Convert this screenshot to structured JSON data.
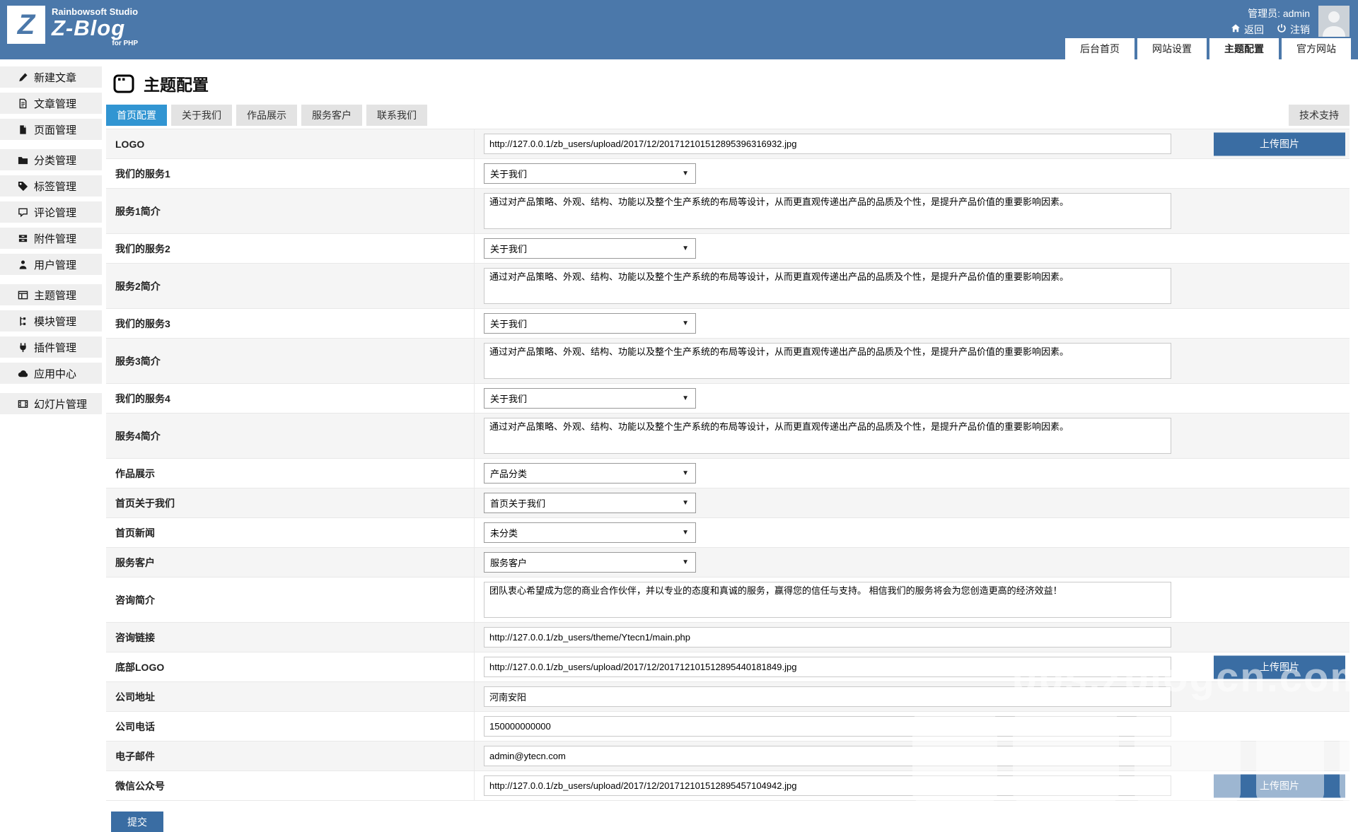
{
  "colors": {
    "header": "#4b78aa",
    "accent": "#3a6da3",
    "tabactive": "#3195d2"
  },
  "brand": {
    "logo_letter": "Z",
    "studio": "Rainbowsoft Studio",
    "product": "Z-Blog",
    "sub": "for PHP"
  },
  "header": {
    "admin_label": "管理员:",
    "admin_name": "admin",
    "back": "返回",
    "logout": "注销",
    "nav": [
      {
        "name": "admin-home",
        "label": "后台首页",
        "active": false
      },
      {
        "name": "site-settings",
        "label": "网站设置",
        "active": false
      },
      {
        "name": "theme-config",
        "label": "主题配置",
        "active": true
      },
      {
        "name": "official-site",
        "label": "官方网站",
        "active": false
      }
    ]
  },
  "sidebar": {
    "groups": [
      [
        {
          "name": "new-article",
          "icon": "edit",
          "label": "新建文章"
        },
        {
          "name": "article-manage",
          "icon": "article",
          "label": "文章管理"
        },
        {
          "name": "page-manage",
          "icon": "page",
          "label": "页面管理"
        }
      ],
      [
        {
          "name": "category-manage",
          "icon": "category",
          "label": "分类管理"
        },
        {
          "name": "tag-manage",
          "icon": "tag",
          "label": "标签管理"
        },
        {
          "name": "comment-manage",
          "icon": "comment",
          "label": "评论管理"
        },
        {
          "name": "attachment-manage",
          "icon": "attachment",
          "label": "附件管理"
        },
        {
          "name": "user-manage",
          "icon": "user",
          "label": "用户管理"
        }
      ],
      [
        {
          "name": "theme-manage",
          "icon": "theme",
          "label": "主题管理"
        },
        {
          "name": "module-manage",
          "icon": "module",
          "label": "模块管理"
        },
        {
          "name": "plugin-manage",
          "icon": "plugin",
          "label": "插件管理"
        },
        {
          "name": "app-center",
          "icon": "app",
          "label": "应用中心"
        }
      ],
      [
        {
          "name": "slideshow-manage",
          "icon": "slideshow",
          "label": "幻灯片管理"
        }
      ]
    ]
  },
  "main": {
    "title": "主题配置",
    "tabs": [
      {
        "name": "home-config",
        "label": "首页配置",
        "active": true
      },
      {
        "name": "about-us",
        "label": "关于我们",
        "active": false
      },
      {
        "name": "portfolio",
        "label": "作品展示",
        "active": false
      },
      {
        "name": "service-customers",
        "label": "服务客户",
        "active": false
      },
      {
        "name": "contact-us",
        "label": "联系我们",
        "active": false
      }
    ],
    "support_label": "技术支持",
    "upload_label": "上传图片",
    "submit_label": "提交",
    "rows": [
      {
        "name": "logo",
        "label": "LOGO",
        "type": "text",
        "value": "http://127.0.0.1/zb_users/upload/2017/12/201712101512895396316932.jpg",
        "upload": true
      },
      {
        "name": "service1",
        "label": "我们的服务1",
        "type": "select",
        "value": "关于我们"
      },
      {
        "name": "service1-intro",
        "label": "服务1简介",
        "type": "textarea",
        "value": "通过对产品策略、外观、结构、功能以及整个生产系统的布局等设计，从而更直观传递出产品的品质及个性，是提升产品价值的重要影响因素。"
      },
      {
        "name": "service2",
        "label": "我们的服务2",
        "type": "select",
        "value": "关于我们"
      },
      {
        "name": "service2-intro",
        "label": "服务2简介",
        "type": "textarea",
        "value": "通过对产品策略、外观、结构、功能以及整个生产系统的布局等设计，从而更直观传递出产品的品质及个性，是提升产品价值的重要影响因素。"
      },
      {
        "name": "service3",
        "label": "我们的服务3",
        "type": "select",
        "value": "关于我们"
      },
      {
        "name": "service3-intro",
        "label": "服务3简介",
        "type": "textarea",
        "value": "通过对产品策略、外观、结构、功能以及整个生产系统的布局等设计，从而更直观传递出产品的品质及个性，是提升产品价值的重要影响因素。"
      },
      {
        "name": "service4",
        "label": "我们的服务4",
        "type": "select",
        "value": "关于我们"
      },
      {
        "name": "service4-intro",
        "label": "服务4简介",
        "type": "textarea",
        "value": "通过对产品策略、外观、结构、功能以及整个生产系统的布局等设计，从而更直观传递出产品的品质及个性，是提升产品价值的重要影响因素。"
      },
      {
        "name": "portfolio-show",
        "label": "作品展示",
        "type": "select",
        "value": "产品分类"
      },
      {
        "name": "home-about",
        "label": "首页关于我们",
        "type": "select",
        "value": "首页关于我们"
      },
      {
        "name": "home-news",
        "label": "首页新闻",
        "type": "select",
        "value": "未分类"
      },
      {
        "name": "service-customer",
        "label": "服务客户",
        "type": "select",
        "value": "服务客户"
      },
      {
        "name": "consult-intro",
        "label": "咨询简介",
        "type": "textarea",
        "value": "团队衷心希望成为您的商业合作伙伴，并以专业的态度和真诚的服务，赢得您的信任与支持。 相信我们的服务将会为您创造更高的经济效益！"
      },
      {
        "name": "consult-link",
        "label": "咨询链接",
        "type": "text",
        "value": "http://127.0.0.1/zb_users/theme/Ytecn1/main.php"
      },
      {
        "name": "footer-logo",
        "label": "底部LOGO",
        "type": "text",
        "value": "http://127.0.0.1/zb_users/upload/2017/12/201712101512895440181849.jpg",
        "upload": true
      },
      {
        "name": "company-address",
        "label": "公司地址",
        "type": "text",
        "value": "河南安阳"
      },
      {
        "name": "company-phone",
        "label": "公司电话",
        "type": "text",
        "value": "150000000000"
      },
      {
        "name": "company-email",
        "label": "电子邮件",
        "type": "text",
        "value": "admin@ytecn.com"
      },
      {
        "name": "wechat-qrcode",
        "label": "微信公众号",
        "type": "text",
        "value": "http://127.0.0.1/zb_users/upload/2017/12/201712101512895457104942.jpg",
        "upload": true
      }
    ]
  },
  "watermark": {
    "line1": "bbs.zblogcn.com"
  }
}
